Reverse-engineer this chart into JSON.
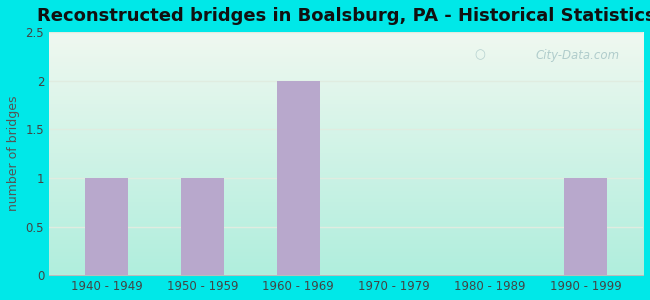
{
  "title": "Reconstructed bridges in Boalsburg, PA - Historical Statistics",
  "categories": [
    "1940 - 1949",
    "1950 - 1959",
    "1960 - 1969",
    "1970 - 1979",
    "1980 - 1989",
    "1990 - 1999"
  ],
  "values": [
    1,
    1,
    2,
    0,
    0,
    1
  ],
  "bar_color": "#b8a8cc",
  "ylabel": "number of bridges",
  "ylim": [
    0,
    2.5
  ],
  "yticks": [
    0,
    0.5,
    1,
    1.5,
    2,
    2.5
  ],
  "background_outer": "#00e8e8",
  "background_top": "#f0f8f0",
  "background_bottom": "#b8f0e0",
  "grid_color": "#e0ece0",
  "title_fontsize": 13,
  "ylabel_fontsize": 9,
  "tick_fontsize": 8.5,
  "tick_color": "#444444",
  "ylabel_color": "#555555",
  "watermark_text": "City-Data.com",
  "watermark_color": "#aac8c8"
}
